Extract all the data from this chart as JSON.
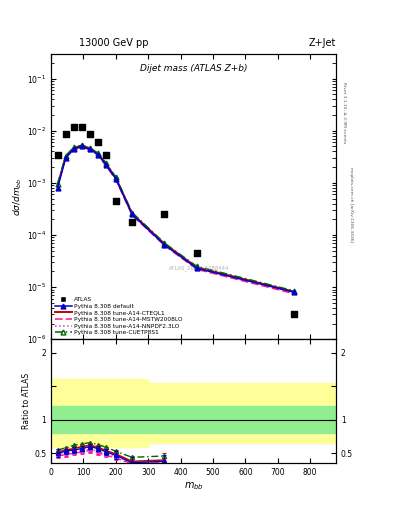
{
  "title_top": "13000 GeV pp",
  "title_right": "Z+Jet",
  "plot_title": "Dijet mass (ATLAS Z+b)",
  "watermark": "ATLAS_2020_I1788444",
  "right_label_top": "Rivet 3.1.10, ≥ 2.9M events",
  "right_label_mid": "mcplots.cern.ch [arXiv:1306.3436]",
  "xlabel": "$m_{bb}$",
  "ylabel_main": "$d\\sigma/dm_{bb}$",
  "ylabel_ratio": "Ratio to ATLAS",
  "atlas_x": [
    20,
    45,
    70,
    95,
    120,
    145,
    170,
    200,
    250,
    350,
    450,
    750
  ],
  "atlas_y": [
    0.0035,
    0.0085,
    0.012,
    0.012,
    0.0085,
    0.006,
    0.0035,
    0.00045,
    0.00018,
    0.00025,
    4.5e-05,
    3e-06
  ],
  "pythia_default_x": [
    20,
    45,
    70,
    95,
    120,
    145,
    170,
    200,
    250,
    350,
    450,
    750
  ],
  "pythia_default_y": [
    0.0008,
    0.003,
    0.0045,
    0.005,
    0.0044,
    0.0035,
    0.0022,
    0.0012,
    0.00025,
    6.5e-05,
    2.3e-05,
    8e-06
  ],
  "cteq_x": [
    20,
    45,
    70,
    95,
    120,
    145,
    170,
    200,
    250,
    350,
    450,
    750
  ],
  "cteq_y": [
    0.0009,
    0.0032,
    0.0047,
    0.0052,
    0.0046,
    0.0036,
    0.0023,
    0.00125,
    0.00026,
    6.8e-05,
    2.4e-05,
    8.2e-06
  ],
  "mstw_x": [
    20,
    45,
    70,
    95,
    120,
    145,
    170,
    200,
    250,
    350,
    450,
    750
  ],
  "mstw_y": [
    0.00085,
    0.003,
    0.0044,
    0.0049,
    0.0043,
    0.0034,
    0.0021,
    0.00115,
    0.00024,
    6.3e-05,
    2.2e-05,
    7.5e-06
  ],
  "nnpdf_x": [
    20,
    45,
    70,
    95,
    120,
    145,
    170,
    200,
    250,
    350,
    450,
    750
  ],
  "nnpdf_y": [
    0.00088,
    0.0031,
    0.0046,
    0.005,
    0.0044,
    0.0035,
    0.0022,
    0.0012,
    0.00025,
    6.5e-05,
    2.3e-05,
    7.9e-06
  ],
  "cuetp_x": [
    20,
    45,
    70,
    95,
    120,
    145,
    170,
    200,
    250,
    350,
    450,
    750
  ],
  "cuetp_y": [
    0.00095,
    0.0033,
    0.0048,
    0.0053,
    0.0047,
    0.0037,
    0.0024,
    0.00128,
    0.00027,
    7e-05,
    2.5e-05,
    8.5e-06
  ],
  "ratio_x": [
    20,
    45,
    70,
    95,
    120,
    145,
    170,
    200,
    250,
    350
  ],
  "ratio_default": [
    0.5,
    0.53,
    0.55,
    0.57,
    0.6,
    0.57,
    0.52,
    0.47,
    0.36,
    0.38
  ],
  "ratio_default_err": [
    0.06,
    0.04,
    0.04,
    0.04,
    0.04,
    0.04,
    0.05,
    0.06,
    0.08,
    0.1
  ],
  "ratio_cteq": [
    0.52,
    0.55,
    0.57,
    0.6,
    0.62,
    0.59,
    0.54,
    0.49,
    0.38,
    0.4
  ],
  "ratio_cteq_err": [
    0.05,
    0.04,
    0.04,
    0.04,
    0.04,
    0.04,
    0.05,
    0.06,
    0.08,
    0.1
  ],
  "ratio_mstw": [
    0.46,
    0.48,
    0.5,
    0.52,
    0.54,
    0.51,
    0.47,
    0.43,
    0.34,
    0.36
  ],
  "ratio_nnpdf": [
    0.48,
    0.5,
    0.52,
    0.54,
    0.56,
    0.53,
    0.49,
    0.45,
    0.36,
    0.38
  ],
  "ratio_cuetp": [
    0.55,
    0.58,
    0.62,
    0.64,
    0.66,
    0.63,
    0.59,
    0.53,
    0.44,
    0.46
  ],
  "color_atlas": "#000000",
  "color_default": "#0000cc",
  "color_cteq": "#cc0000",
  "color_mstw": "#ff1493",
  "color_nnpdf": "#cc44cc",
  "color_cuetp": "#006600",
  "color_band_green": "#00cc00",
  "color_band_green_alpha": 0.25,
  "color_band_yellow": "#cccc00",
  "color_band_yellow_alpha": 0.25,
  "ylim_main": [
    1e-06,
    0.3
  ],
  "ylim_ratio": [
    0.35,
    2.2
  ],
  "xlim": [
    0,
    880
  ],
  "legend_entries": [
    "ATLAS",
    "Pythia 8.308 default",
    "Pythia 8.308 tune-A14-CTEQL1",
    "Pythia 8.308 tune-A14-MSTW2008LO",
    "Pythia 8.308 tune-A14-NNPDF2.3LO",
    "Pythia 8.308 tune-CUETP8S1"
  ]
}
